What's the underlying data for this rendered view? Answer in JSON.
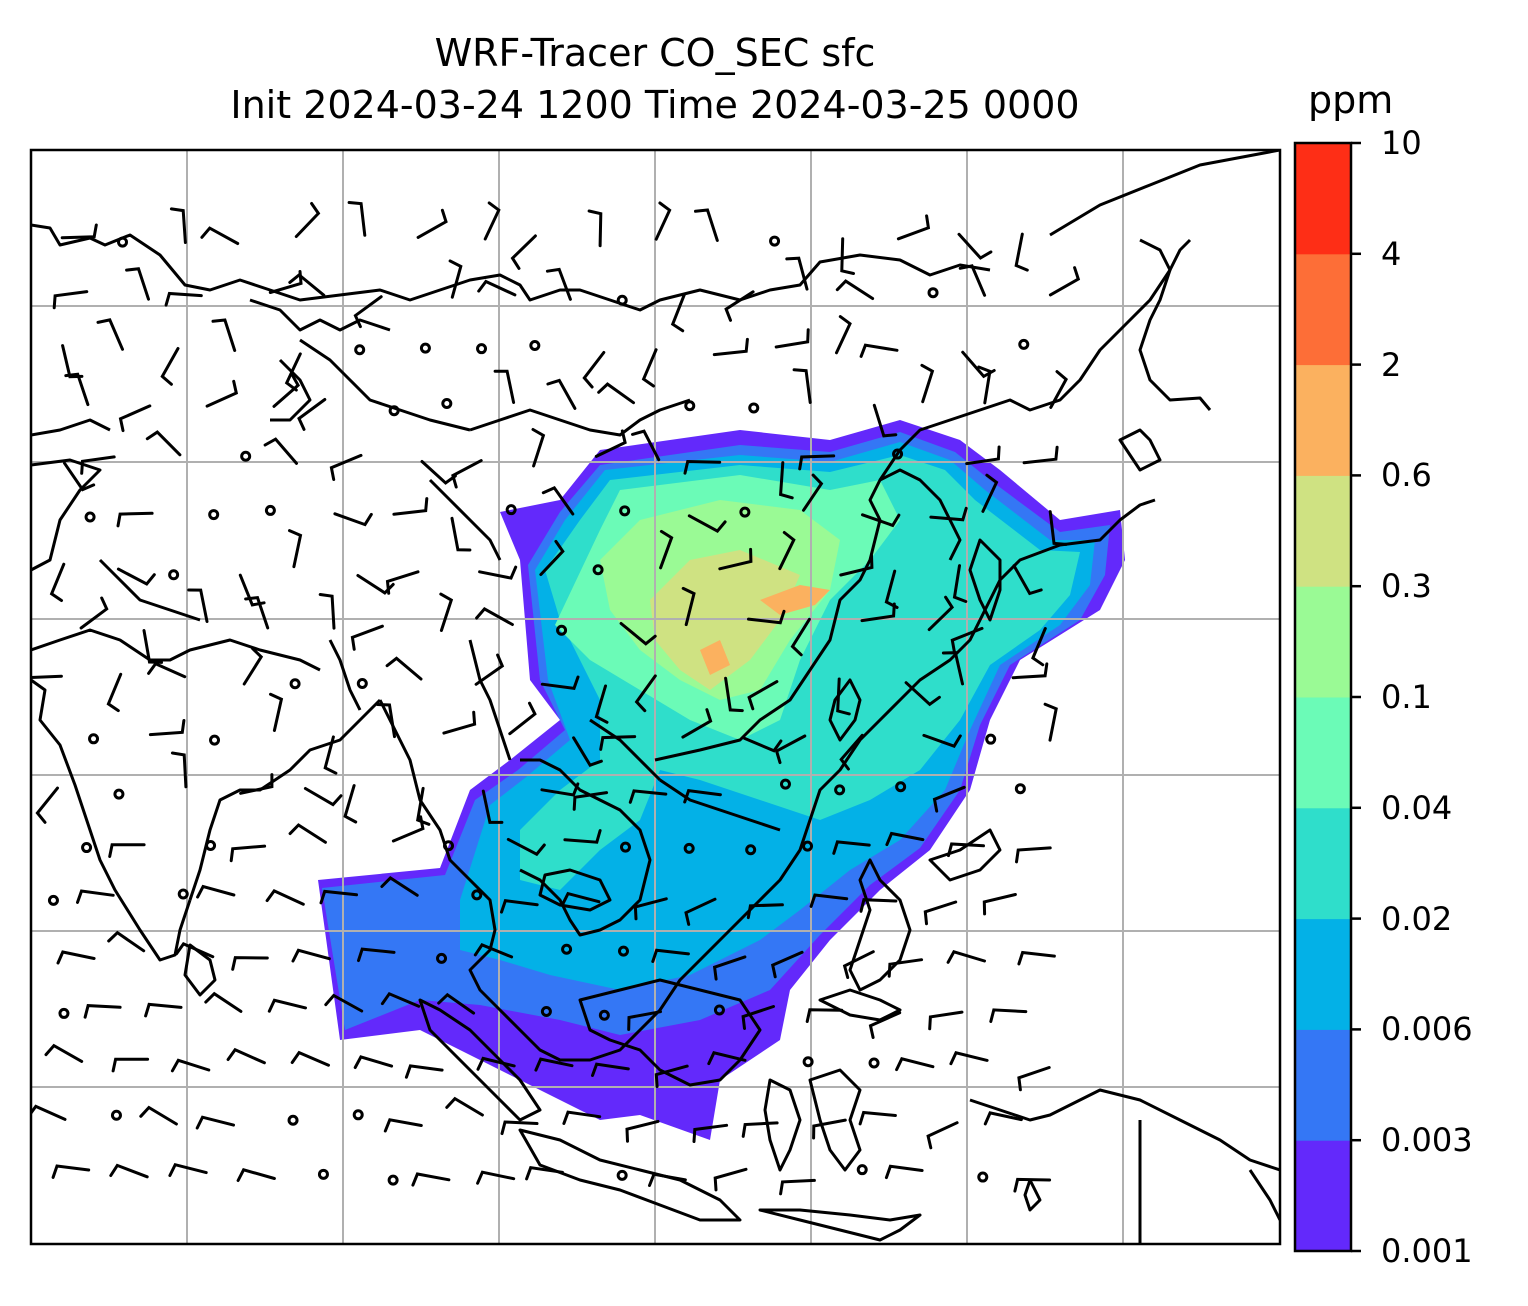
{
  "title": {
    "line1": "WRF-Tracer CO_SEC sfc",
    "line2": "Init 2024-03-24 1200 Time 2024-03-25 0000"
  },
  "colorbar": {
    "unit": "ppm",
    "levels": [
      "0.001",
      "0.003",
      "0.006",
      "0.02",
      "0.04",
      "0.1",
      "0.3",
      "0.6",
      "2",
      "4",
      "10"
    ],
    "colors": [
      "#6329fb",
      "#3477f5",
      "#03b1e7",
      "#2fdecb",
      "#6bfbb7",
      "#9afa95",
      "#cfe282",
      "#fbb15f",
      "#fd6e37",
      "#fe2e16"
    ]
  },
  "map": {
    "field": "CO_SEC surface concentration",
    "gridlines": true,
    "overlays": [
      "coastlines",
      "country-borders",
      "wind-barbs",
      "calm-wind-circles"
    ]
  }
}
